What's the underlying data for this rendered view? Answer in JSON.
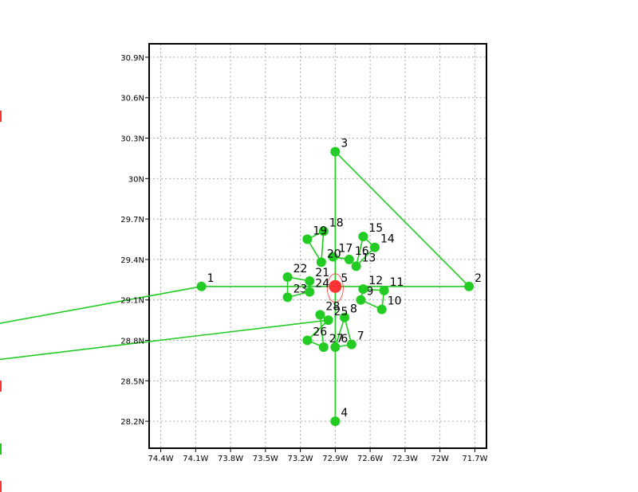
{
  "chart_data": {
    "type": "map-track",
    "xlim_deg_west": [
      74.5,
      71.6
    ],
    "ylim_deg_north": [
      28.0,
      31.0
    ],
    "grid": true,
    "grid_style": "dotted",
    "x_ticks": [
      {
        "value": 74.4,
        "label": "74.4W"
      },
      {
        "value": 74.1,
        "label": "74.1W"
      },
      {
        "value": 73.8,
        "label": "73.8W"
      },
      {
        "value": 73.5,
        "label": "73.5W"
      },
      {
        "value": 73.2,
        "label": "73.2W"
      },
      {
        "value": 72.9,
        "label": "72.9W"
      },
      {
        "value": 72.6,
        "label": "72.6W"
      },
      {
        "value": 72.3,
        "label": "72.3W"
      },
      {
        "value": 72.0,
        "label": "72W"
      },
      {
        "value": 71.7,
        "label": "71.7W"
      }
    ],
    "y_ticks": [
      {
        "value": 28.2,
        "label": "28.2N"
      },
      {
        "value": 28.5,
        "label": "28.5N"
      },
      {
        "value": 28.8,
        "label": "28.8N"
      },
      {
        "value": 29.1,
        "label": "29.1N"
      },
      {
        "value": 29.4,
        "label": "29.4N"
      },
      {
        "value": 29.7,
        "label": "29.7N"
      },
      {
        "value": 30.0,
        "label": "30N"
      },
      {
        "value": 30.3,
        "label": "30.3N"
      },
      {
        "value": 30.6,
        "label": "30.6N"
      },
      {
        "value": 30.9,
        "label": "30.9N"
      }
    ],
    "center": {
      "lon_w": 72.9,
      "lat_n": 29.2,
      "color": "#ff3333"
    },
    "track_color": "#22cc22",
    "points": [
      {
        "label": "1",
        "lon_w": 74.05,
        "lat_n": 29.2
      },
      {
        "label": "2",
        "lon_w": 71.75,
        "lat_n": 29.2
      },
      {
        "label": "3",
        "lon_w": 72.9,
        "lat_n": 30.2
      },
      {
        "label": "4",
        "lon_w": 72.9,
        "lat_n": 28.2
      },
      {
        "label": "5",
        "lon_w": 72.9,
        "lat_n": 29.2
      },
      {
        "label": "6",
        "lon_w": 72.9,
        "lat_n": 28.75
      },
      {
        "label": "7",
        "lon_w": 72.76,
        "lat_n": 28.77
      },
      {
        "label": "8",
        "lon_w": 72.82,
        "lat_n": 28.97
      },
      {
        "label": "9",
        "lon_w": 72.68,
        "lat_n": 29.1
      },
      {
        "label": "10",
        "lon_w": 72.5,
        "lat_n": 29.03
      },
      {
        "label": "11",
        "lon_w": 72.48,
        "lat_n": 29.17
      },
      {
        "label": "12",
        "lon_w": 72.66,
        "lat_n": 29.18
      },
      {
        "label": "13",
        "lon_w": 72.72,
        "lat_n": 29.35
      },
      {
        "label": "14",
        "lon_w": 72.56,
        "lat_n": 29.49
      },
      {
        "label": "15",
        "lon_w": 72.66,
        "lat_n": 29.57
      },
      {
        "label": "16",
        "lon_w": 72.78,
        "lat_n": 29.4
      },
      {
        "label": "17",
        "lon_w": 72.92,
        "lat_n": 29.42
      },
      {
        "label": "18",
        "lon_w": 73.0,
        "lat_n": 29.61
      },
      {
        "label": "19",
        "lon_w": 73.14,
        "lat_n": 29.55
      },
      {
        "label": "20",
        "lon_w": 73.02,
        "lat_n": 29.38
      },
      {
        "label": "21",
        "lon_w": 73.12,
        "lat_n": 29.24
      },
      {
        "label": "22",
        "lon_w": 73.31,
        "lat_n": 29.27
      },
      {
        "label": "23",
        "lon_w": 73.31,
        "lat_n": 29.12
      },
      {
        "label": "24",
        "lon_w": 73.12,
        "lat_n": 29.16
      },
      {
        "label": "25",
        "lon_w": 72.96,
        "lat_n": 28.95
      },
      {
        "label": "26",
        "lon_w": 73.14,
        "lat_n": 28.8
      },
      {
        "label": "27",
        "lon_w": 73.0,
        "lat_n": 28.75
      },
      {
        "label": "28",
        "lon_w": 73.03,
        "lat_n": 28.99
      }
    ],
    "segments": [
      [
        "1",
        "2"
      ],
      [
        "2",
        "3"
      ],
      [
        "3",
        "4"
      ],
      [
        "1",
        "offL1"
      ],
      [
        "25",
        "offL2"
      ],
      [
        "6",
        "7"
      ],
      [
        "7",
        "8"
      ],
      [
        "8",
        "6"
      ],
      [
        "9",
        "10"
      ],
      [
        "10",
        "11"
      ],
      [
        "11",
        "12"
      ],
      [
        "12",
        "9"
      ],
      [
        "13",
        "14"
      ],
      [
        "14",
        "15"
      ],
      [
        "15",
        "13"
      ],
      [
        "16",
        "17"
      ],
      [
        "17",
        "16"
      ],
      [
        "18",
        "19"
      ],
      [
        "19",
        "20"
      ],
      [
        "20",
        "18"
      ],
      [
        "21",
        "22"
      ],
      [
        "22",
        "23"
      ],
      [
        "23",
        "24"
      ],
      [
        "24",
        "21"
      ],
      [
        "25",
        "26"
      ],
      [
        "26",
        "27"
      ],
      [
        "27",
        "28"
      ],
      [
        "28",
        "25"
      ]
    ]
  }
}
